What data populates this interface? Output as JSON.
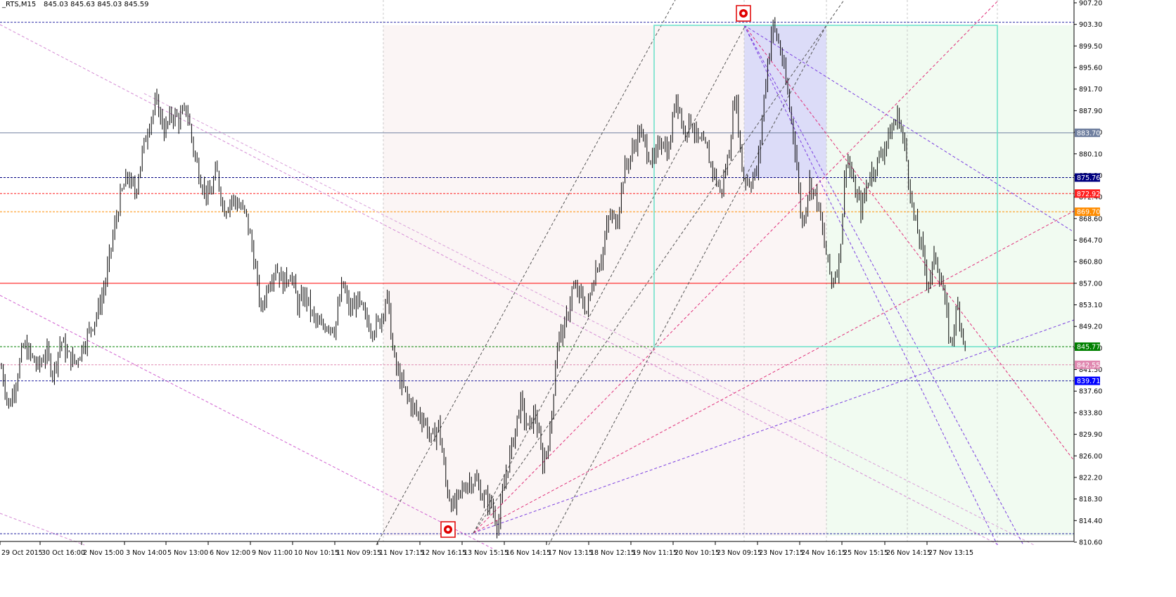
{
  "header": {
    "symbol": "_RTS,M15",
    "ohlc": "845.03 845.63 845.03 845.59"
  },
  "colors": {
    "background": "#ffffff",
    "candles": "#000000",
    "grid": "#c8c8c8",
    "rectangle": "#7fffd4",
    "blue_zone": "#dcdcf8",
    "pink_zone": "#fbf4f4",
    "green_zone": "#f0fbf0"
  },
  "chart_data": {
    "type": "line",
    "title": "_RTS,M15",
    "ylim": [
      810.6,
      907.0
    ],
    "y_ticks": [
      "907.20",
      "903.30",
      "899.50",
      "895.60",
      "891.70",
      "887.90",
      "884.00",
      "880.10",
      "876.20",
      "872.40",
      "868.60",
      "864.70",
      "860.80",
      "857.00",
      "853.10",
      "849.20",
      "845.40",
      "841.50",
      "837.60",
      "833.80",
      "829.90",
      "826.00",
      "822.20",
      "818.30",
      "814.40",
      "810.60"
    ],
    "x_ticks": [
      "29 Oct 2015",
      "30 Oct 16:00",
      "2 Nov 15:00",
      "3 Nov 14:00",
      "5 Nov 13:00",
      "6 Nov 12:00",
      "9 Nov 11:00",
      "10 Nov 10:15",
      "11 Nov 09:15",
      "11 Nov 17:15",
      "12 Nov 16:15",
      "13 Nov 15:15",
      "16 Nov 14:15",
      "17 Nov 13:15",
      "18 Nov 12:15",
      "19 Nov 11:15",
      "20 Nov 10:15",
      "23 Nov 09:15",
      "23 Nov 17:15",
      "24 Nov 16:15",
      "25 Nov 15:15",
      "26 Nov 14:15",
      "27 Nov 13:15"
    ],
    "price_path": [
      842,
      835,
      840,
      846,
      844,
      842,
      845,
      841,
      847,
      844,
      843,
      846,
      849,
      852,
      857,
      865,
      872,
      876,
      873,
      880,
      886,
      889,
      884,
      887,
      886,
      888,
      880,
      875,
      872,
      877,
      870,
      872,
      871,
      869,
      862,
      852,
      857,
      860,
      857,
      859,
      853,
      855,
      851,
      849,
      850,
      849,
      857,
      852,
      854,
      851,
      849,
      850,
      855,
      843,
      839,
      836,
      834,
      833,
      829,
      832,
      821,
      817,
      820,
      822,
      822,
      819,
      818,
      814,
      823,
      829,
      836,
      831,
      834,
      825,
      830,
      847,
      849,
      856,
      855,
      852,
      859,
      862,
      869,
      868,
      877,
      880,
      884,
      881,
      878,
      883,
      880,
      891,
      884,
      886,
      882,
      881,
      877,
      873,
      879,
      891,
      876,
      875,
      877,
      892,
      903,
      899,
      891,
      882,
      867,
      875,
      872,
      864,
      857,
      861,
      880,
      874,
      870,
      876,
      878,
      881,
      884,
      887,
      880,
      869,
      864,
      857,
      862,
      856,
      846,
      853,
      845.59
    ],
    "horizontal_levels": [
      {
        "price": 903.3,
        "color": "#3333aa",
        "style": "dashed"
      },
      {
        "price": 883.7,
        "color": "#6f7f9f",
        "style": "solid",
        "tag": "883.70",
        "tag_bg": "#6f7f9f"
      },
      {
        "price": 875.76,
        "color": "#000080",
        "style": "dashed",
        "tag": "875.76",
        "tag_bg": "#000080"
      },
      {
        "price": 872.92,
        "color": "#ff2020",
        "style": "dashed",
        "tag": "872.92",
        "tag_bg": "#ff2020"
      },
      {
        "price": 869.7,
        "color": "#ff8c00",
        "style": "dashed",
        "tag": "869.70",
        "tag_bg": "#ff8c00"
      },
      {
        "price": 857.0,
        "color": "#ff0000",
        "style": "solid"
      },
      {
        "price": 845.77,
        "color": "#008000",
        "style": "dashed",
        "tag": "845.77",
        "tag_bg": "#008000"
      },
      {
        "price": 842.55,
        "color": "#e088b0",
        "style": "dashed",
        "tag": "842.55",
        "tag_bg": "#e088b0"
      },
      {
        "price": 839.71,
        "color": "#2020a0",
        "style": "dashed",
        "tag": "839.71",
        "tag_bg": "#0000ff"
      },
      {
        "price": 812.6,
        "color": "#2020a0",
        "style": "dashed"
      }
    ]
  }
}
